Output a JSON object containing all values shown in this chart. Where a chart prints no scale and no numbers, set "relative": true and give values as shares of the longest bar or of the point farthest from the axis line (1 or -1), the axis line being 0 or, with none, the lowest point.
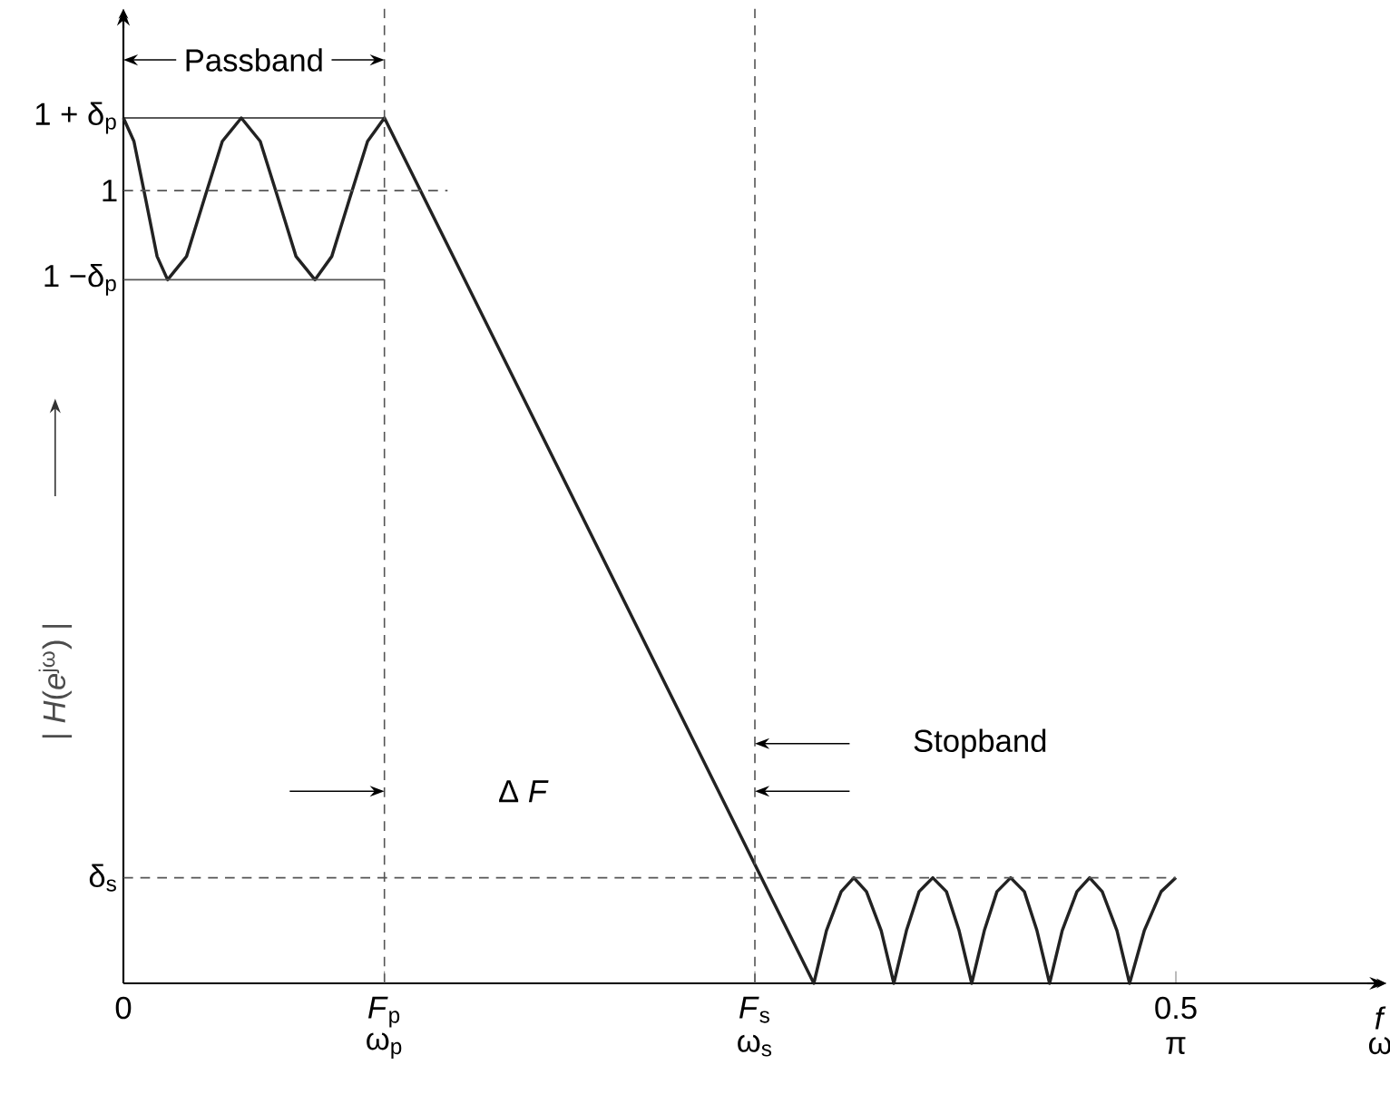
{
  "chart_data": {
    "type": "line",
    "relative": true,
    "xlabel": "*f*",
    "ylabel": "| *H*(*e*$^{jω}$) |",
    "xlim": [
      0,
      0.6
    ],
    "xticks": [
      0,
      {
        "value": 0.124,
        "label": "*F*$_{p}$"
      },
      {
        "value": 0.3,
        "label": "*F*$_{s}$"
      },
      0.5
    ],
    "series": [
      {
        "color": "#222222",
        "x": [
          0,
          0.005,
          0.0105,
          0.016,
          0.021,
          0.03,
          0.0385,
          0.047,
          0.056,
          0.065,
          0.0735,
          0.082,
          0.091,
          0.099,
          0.1075,
          0.116,
          0.124,
          0.328,
          0.334,
          0.341,
          0.347,
          0.353,
          0.36,
          0.366,
          0.372,
          0.378,
          0.3845,
          0.391,
          0.397,
          0.403,
          0.409,
          0.415,
          0.4215,
          0.428,
          0.434,
          0.44,
          0.446,
          0.453,
          0.459,
          0.465,
          0.472,
          0.478,
          0.485,
          0.493,
          0.5
        ],
        "values": [
          1,
          0.973,
          0.907,
          0.84,
          0.813,
          0.84,
          0.907,
          0.973,
          1,
          0.973,
          0.907,
          0.84,
          0.813,
          0.84,
          0.907,
          0.973,
          1,
          0,
          0.061,
          0.106,
          0.122,
          0.106,
          0.061,
          0,
          0.061,
          0.106,
          0.122,
          0.106,
          0.061,
          0,
          0.061,
          0.106,
          0.122,
          0.106,
          0.061,
          0,
          0.061,
          0.106,
          0.122,
          0.106,
          0.061,
          0,
          0.061,
          0.106,
          0.122
        ]
      }
    ],
    "ref_lines": [
      {
        "axis": "y",
        "value": 1,
        "label": "1 + δ$_{p}$",
        "line_style": "solid",
        "color": "#222222"
      },
      {
        "axis": "y",
        "value": 0.916,
        "label": "1",
        "line_style": "dashed",
        "color": "#555555"
      },
      {
        "axis": "y",
        "value": 0.813,
        "label": "1 −δ$_{p}$",
        "line_style": "solid",
        "color": "#555555"
      },
      {
        "axis": "y",
        "value": 0.122,
        "label": "δ$_{s}$",
        "line_style": "dashed",
        "color": "#555555"
      },
      {
        "axis": "x",
        "value": 0.124,
        "line_style": "dashed",
        "color": "#555555"
      },
      {
        "axis": "x",
        "value": 0.3,
        "line_style": "dashed",
        "color": "#555555"
      }
    ],
    "annotations": [
      "Passband",
      "Δ *F*",
      "Stopband",
      "ω$_{p}$",
      "ω$_{s}$",
      "π",
      "ω"
    ]
  }
}
